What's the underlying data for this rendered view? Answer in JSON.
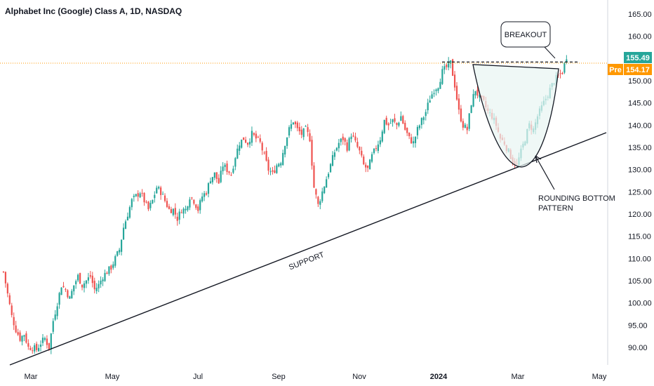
{
  "header": {
    "title": "Alphabet Inc (Google) Class A, 1D, NASDAQ"
  },
  "colors": {
    "up": "#26a69a",
    "down": "#ef5350",
    "last_price": "#26a69a",
    "pre_market": "#ff9800",
    "level_line": "#ff9800",
    "pattern_fill": "#e8f5f2"
  },
  "chart_data": {
    "type": "candlestick",
    "ylim": [
      88,
      168
    ],
    "y_ticks": [
      "90.00",
      "95.00",
      "100.00",
      "105.00",
      "110.00",
      "115.00",
      "120.00",
      "125.00",
      "130.00",
      "135.00",
      "140.00",
      "145.00",
      "150.00",
      "155.00",
      "160.00",
      "165.00"
    ],
    "x_ticks": [
      "Mar",
      "May",
      "Jul",
      "Sep",
      "Nov",
      "2024",
      "Mar",
      "May"
    ],
    "last_price": {
      "value": "155.49"
    },
    "pre_market": {
      "label": "Pre",
      "value": "154.17"
    },
    "support_line": {
      "label": "SUPPORT",
      "from": [
        "Feb",
        87.5
      ],
      "to": [
        "Apr 2024",
        138
      ]
    },
    "resistance_level": 154.2,
    "annotations": {
      "breakout": "BREAKOUT",
      "pattern_line1": "ROUNDING BOTTOM",
      "pattern_line2": "PATTERN"
    },
    "series": [
      {
        "name": "price",
        "points": [
          [
            1,
            107
          ],
          [
            3,
            102
          ],
          [
            5,
            97
          ],
          [
            7,
            94
          ],
          [
            9,
            92
          ],
          [
            11,
            93
          ],
          [
            13,
            90
          ],
          [
            15,
            90
          ],
          [
            17,
            89.5
          ],
          [
            19,
            91
          ],
          [
            21,
            92
          ],
          [
            23,
            90
          ],
          [
            25,
            96
          ],
          [
            27,
            100
          ],
          [
            29,
            104
          ],
          [
            31,
            103
          ],
          [
            33,
            101
          ],
          [
            35,
            104
          ],
          [
            37,
            106
          ],
          [
            39,
            104
          ],
          [
            41,
            105
          ],
          [
            43,
            106
          ],
          [
            45,
            103
          ],
          [
            47,
            104
          ],
          [
            49,
            106
          ],
          [
            51,
            107
          ],
          [
            53,
            108
          ],
          [
            55,
            110
          ],
          [
            57,
            112
          ],
          [
            59,
            117
          ],
          [
            61,
            120
          ],
          [
            63,
            123
          ],
          [
            65,
            124
          ],
          [
            67,
            125
          ],
          [
            69,
            123
          ],
          [
            71,
            121
          ],
          [
            73,
            123
          ],
          [
            75,
            126
          ],
          [
            77,
            125
          ],
          [
            79,
            123
          ],
          [
            81,
            121
          ],
          [
            83,
            121
          ],
          [
            85,
            119
          ],
          [
            87,
            121
          ],
          [
            89,
            121
          ],
          [
            91,
            124
          ],
          [
            93,
            123
          ],
          [
            95,
            121
          ],
          [
            97,
            124
          ],
          [
            99,
            125
          ],
          [
            101,
            128
          ],
          [
            103,
            129
          ],
          [
            105,
            127
          ],
          [
            107,
            131
          ],
          [
            109,
            130
          ],
          [
            111,
            129
          ],
          [
            113,
            133
          ],
          [
            115,
            136
          ],
          [
            117,
            137
          ],
          [
            119,
            136
          ],
          [
            121,
            138
          ],
          [
            123,
            137
          ],
          [
            125,
            136
          ],
          [
            127,
            133
          ],
          [
            129,
            130
          ],
          [
            131,
            129
          ],
          [
            133,
            131
          ],
          [
            135,
            132
          ],
          [
            137,
            136
          ],
          [
            139,
            139
          ],
          [
            141,
            141
          ],
          [
            143,
            139
          ],
          [
            145,
            138
          ],
          [
            147,
            139
          ],
          [
            149,
            137
          ],
          [
            151,
            126
          ],
          [
            153,
            122
          ],
          [
            155,
            125
          ],
          [
            157,
            128
          ],
          [
            159,
            131
          ],
          [
            161,
            134
          ],
          [
            163,
            136
          ],
          [
            165,
            137
          ],
          [
            167,
            135
          ],
          [
            169,
            138
          ],
          [
            171,
            136
          ],
          [
            173,
            134
          ],
          [
            175,
            131
          ],
          [
            177,
            130
          ],
          [
            179,
            133
          ],
          [
            181,
            135
          ],
          [
            183,
            137
          ],
          [
            185,
            141
          ],
          [
            187,
            140
          ],
          [
            189,
            141
          ],
          [
            191,
            140
          ],
          [
            193,
            142
          ],
          [
            195,
            139
          ],
          [
            197,
            137
          ],
          [
            199,
            136
          ],
          [
            201,
            139
          ],
          [
            203,
            141
          ],
          [
            205,
            143
          ],
          [
            207,
            146
          ],
          [
            209,
            148
          ],
          [
            211,
            149
          ],
          [
            213,
            152
          ],
          [
            215,
            153
          ],
          [
            217,
            154
          ],
          [
            219,
            149
          ],
          [
            221,
            143
          ],
          [
            223,
            140
          ],
          [
            225,
            139
          ],
          [
            227,
            145
          ],
          [
            229,
            148
          ],
          [
            231,
            146
          ],
          [
            233,
            145
          ],
          [
            235,
            143
          ],
          [
            237,
            142
          ],
          [
            239,
            140
          ],
          [
            241,
            137
          ],
          [
            243,
            136
          ],
          [
            245,
            134
          ],
          [
            247,
            132
          ],
          [
            249,
            131
          ],
          [
            251,
            134
          ],
          [
            253,
            137
          ],
          [
            255,
            140
          ],
          [
            257,
            139
          ],
          [
            259,
            142
          ],
          [
            261,
            144
          ],
          [
            263,
            146
          ],
          [
            265,
            148
          ],
          [
            267,
            150
          ],
          [
            269,
            151
          ],
          [
            271,
            152
          ],
          [
            273,
            155.5
          ]
        ]
      }
    ]
  }
}
